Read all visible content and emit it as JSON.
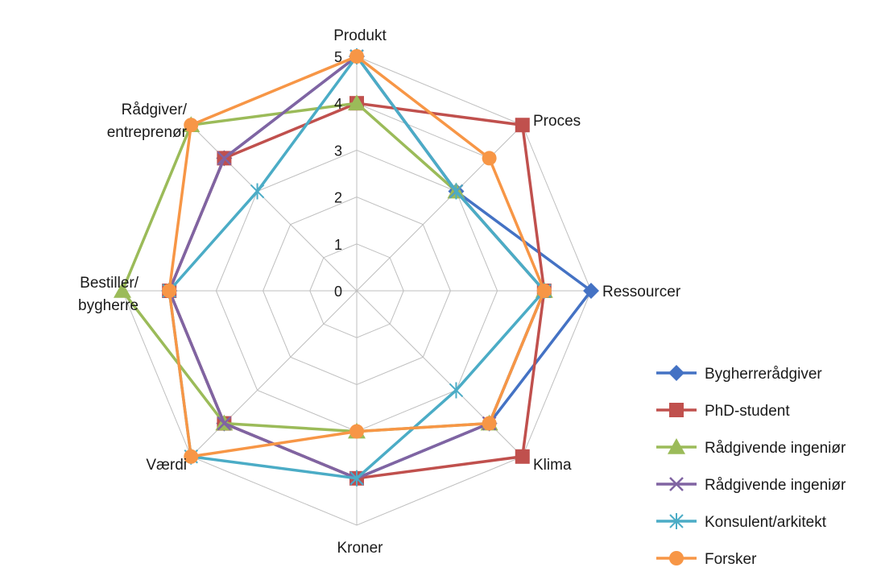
{
  "chart_data": {
    "type": "radar",
    "title": "",
    "axes": [
      [
        "Produkt"
      ],
      [
        "Proces"
      ],
      [
        "Ressourcer"
      ],
      [
        "Klima"
      ],
      [
        "Kroner"
      ],
      [
        "Værdi"
      ],
      [
        "Bestiller/",
        "bygherre"
      ],
      [
        "Rådgiver/",
        "entreprenør"
      ]
    ],
    "rlim": [
      0,
      5
    ],
    "ticks": [
      "0",
      "1",
      "2",
      "3",
      "4",
      "5"
    ],
    "grid": true,
    "legend_position": "right",
    "series": [
      {
        "name": "Bygherrerådgiver",
        "color": "#4472C4",
        "marker": "diamond",
        "values": [
          5,
          3,
          5,
          4,
          4,
          4,
          4,
          4
        ]
      },
      {
        "name": "PhD-student",
        "color": "#C0504D",
        "marker": "square",
        "values": [
          4,
          5,
          4,
          5,
          4,
          4,
          4,
          4
        ]
      },
      {
        "name": "Rådgivende ingeniør",
        "color": "#9BBB59",
        "marker": "triangle",
        "values": [
          4,
          3,
          4,
          4,
          3,
          4,
          5,
          5
        ]
      },
      {
        "name": "Rådgivende ingeniør",
        "color": "#8064A2",
        "marker": "x",
        "values": [
          5,
          3,
          4,
          4,
          4,
          4,
          4,
          4
        ]
      },
      {
        "name": "Konsulent/arkitekt",
        "color": "#4BACC6",
        "marker": "star",
        "values": [
          5,
          3,
          4,
          3,
          4,
          5,
          4,
          3
        ]
      },
      {
        "name": "Forsker",
        "color": "#F79646",
        "marker": "circle",
        "values": [
          5,
          4,
          4,
          4,
          3,
          5,
          4,
          5
        ]
      }
    ]
  }
}
